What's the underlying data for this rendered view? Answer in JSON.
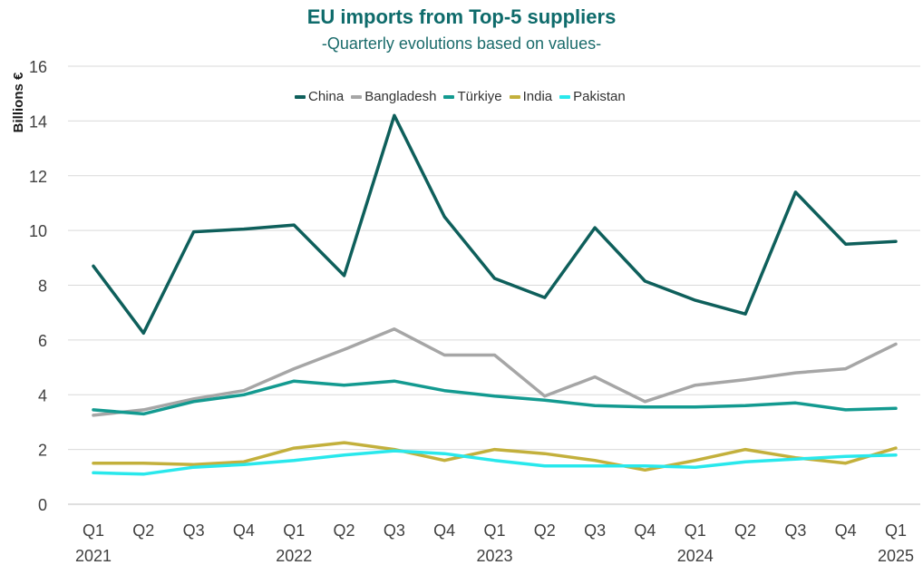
{
  "header": {
    "title": "EU imports from Top-5 suppliers",
    "subtitle": "-Quarterly evolutions based on values-"
  },
  "chart_data": {
    "type": "line",
    "title": "EU imports from Top-5 suppliers",
    "subtitle": "-Quarterly evolutions based on values-",
    "xlabel": "",
    "ylabel": "Billions €",
    "categories": [
      "Q1",
      "Q2",
      "Q3",
      "Q4",
      "Q1",
      "Q2",
      "Q3",
      "Q4",
      "Q1",
      "Q2",
      "Q3",
      "Q4",
      "Q1",
      "Q2",
      "Q3",
      "Q4",
      "Q1"
    ],
    "year_labels": [
      {
        "index": 0,
        "label": "2021"
      },
      {
        "index": 4,
        "label": "2022"
      },
      {
        "index": 8,
        "label": "2023"
      },
      {
        "index": 12,
        "label": "2024"
      },
      {
        "index": 16,
        "label": "2025"
      }
    ],
    "ylim": [
      0,
      16
    ],
    "yticks": [
      0,
      2,
      4,
      6,
      8,
      10,
      12,
      14,
      16
    ],
    "grid": true,
    "legend_position": "top",
    "series": [
      {
        "name": "China",
        "color": "#0e5f5b",
        "values": [
          8.7,
          6.25,
          9.95,
          10.05,
          10.2,
          8.35,
          14.2,
          10.5,
          8.25,
          7.55,
          10.1,
          8.15,
          7.45,
          6.95,
          11.4,
          9.5,
          9.6
        ]
      },
      {
        "name": "Bangladesh",
        "color": "#a6a6a6",
        "values": [
          3.25,
          3.45,
          3.85,
          4.15,
          4.95,
          5.65,
          6.4,
          5.45,
          5.45,
          3.95,
          4.65,
          3.75,
          4.35,
          4.55,
          4.8,
          4.95,
          5.85
        ]
      },
      {
        "name": "Türkiye",
        "color": "#139a90",
        "values": [
          3.45,
          3.3,
          3.75,
          4.0,
          4.5,
          4.35,
          4.5,
          4.15,
          3.95,
          3.8,
          3.6,
          3.55,
          3.55,
          3.6,
          3.7,
          3.45,
          3.5
        ]
      },
      {
        "name": "India",
        "color": "#c3b03c",
        "values": [
          1.5,
          1.5,
          1.45,
          1.55,
          2.05,
          2.25,
          2.0,
          1.6,
          2.0,
          1.85,
          1.6,
          1.25,
          1.6,
          2.0,
          1.7,
          1.5,
          2.05
        ]
      },
      {
        "name": "Pakistan",
        "color": "#29e8ec",
        "values": [
          1.15,
          1.1,
          1.35,
          1.45,
          1.6,
          1.8,
          1.95,
          1.85,
          1.6,
          1.4,
          1.4,
          1.4,
          1.35,
          1.55,
          1.65,
          1.75,
          1.8
        ]
      }
    ]
  }
}
